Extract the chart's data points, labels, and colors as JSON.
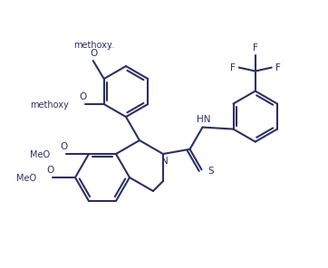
{
  "bg_color": "#ffffff",
  "line_color": "#2d3060",
  "line_width": 1.5,
  "font_size": 7.5,
  "figsize": [
    3.62,
    2.96
  ],
  "dpi": 100,
  "xlim": [
    0,
    9.0
  ],
  "ylim": [
    0,
    7.4
  ]
}
